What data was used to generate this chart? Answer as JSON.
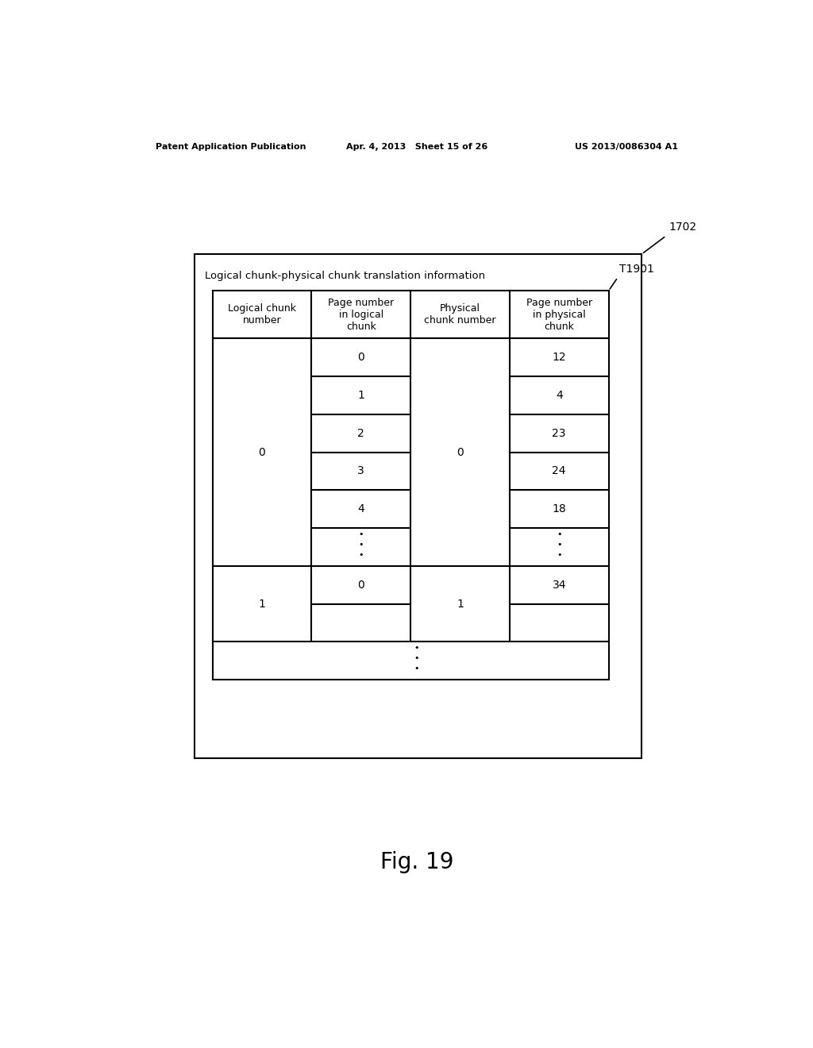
{
  "bg_color": "#ffffff",
  "header_text_left": "Patent Application Publication",
  "header_text_mid": "Apr. 4, 2013   Sheet 15 of 26",
  "header_text_right": "US 2013/0086304 A1",
  "fig_label": "Fig. 19",
  "label_1702": "1702",
  "label_T1901": "T1901",
  "title_text": "Logical chunk-physical chunk translation information",
  "col_headers": [
    "Logical chunk\nnumber",
    "Page number\nin logical\nchunk",
    "Physical\nchunk number",
    "Page number\nin physical\nchunk"
  ],
  "font_size_header_col": 9,
  "font_size_data": 10,
  "font_size_title": 9.5,
  "font_size_label": 10,
  "font_size_fig": 20,
  "font_size_page_header": 8
}
